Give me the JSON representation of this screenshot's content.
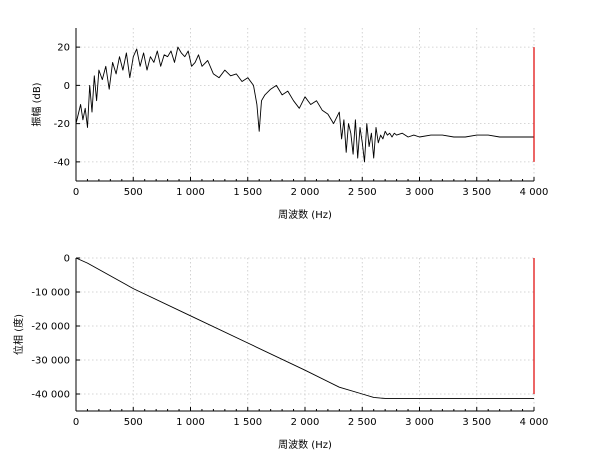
{
  "chart_data": [
    {
      "type": "line",
      "xlabel": "周波数 (Hz)",
      "ylabel": "振幅 (dB)",
      "xlim": [
        0,
        4000
      ],
      "ylim": [
        -50,
        30
      ],
      "xticks": [
        0,
        500,
        1000,
        1500,
        2000,
        2500,
        3000,
        3500,
        4000
      ],
      "xtick_labels": [
        "0",
        "500",
        "1 000",
        "1 500",
        "2 000",
        "2 500",
        "3 000",
        "3 500",
        "4 000"
      ],
      "yticks": [
        20,
        0,
        -20,
        -40
      ],
      "ytick_labels": [
        "20",
        "0",
        "-20",
        "-40"
      ],
      "grid": true,
      "line_color": "#000000",
      "marker_line": {
        "x": 4000,
        "y_from": 20,
        "y_to": -40,
        "color": "#e00000"
      },
      "series": [
        {
          "x": [
            0,
            20,
            40,
            60,
            80,
            100,
            120,
            140,
            160,
            180,
            200,
            230,
            260,
            290,
            320,
            350,
            380,
            410,
            440,
            470,
            500,
            530,
            560,
            590,
            620,
            650,
            680,
            710,
            740,
            770,
            800,
            830,
            860,
            890,
            920,
            950,
            980,
            1010,
            1040,
            1070,
            1100,
            1150,
            1200,
            1250,
            1300,
            1350,
            1400,
            1450,
            1500,
            1550,
            1580,
            1600,
            1620,
            1650,
            1700,
            1750,
            1800,
            1850,
            1900,
            1950,
            2000,
            2050,
            2100,
            2150,
            2200,
            2250,
            2300,
            2320,
            2340,
            2360,
            2380,
            2400,
            2420,
            2440,
            2460,
            2480,
            2500,
            2520,
            2540,
            2560,
            2580,
            2600,
            2620,
            2640,
            2660,
            2680,
            2700,
            2720,
            2740,
            2760,
            2780,
            2800,
            2850,
            2900,
            2950,
            3000,
            3100,
            3200,
            3300,
            3400,
            3500,
            3600,
            3700,
            3800,
            3900,
            4000
          ],
          "y": [
            -20,
            -15,
            -10,
            -18,
            -12,
            -22,
            0,
            -14,
            5,
            -8,
            8,
            3,
            10,
            -2,
            12,
            6,
            15,
            8,
            17,
            4,
            15,
            19,
            10,
            17,
            8,
            15,
            12,
            18,
            10,
            16,
            15,
            18,
            12,
            20,
            17,
            15,
            18,
            10,
            12,
            16,
            10,
            13,
            6,
            4,
            8,
            5,
            6,
            2,
            4,
            0,
            -10,
            -24,
            -8,
            -5,
            -2,
            0,
            -5,
            -3,
            -8,
            -12,
            -6,
            -10,
            -8,
            -13,
            -15,
            -20,
            -14,
            -28,
            -18,
            -35,
            -20,
            -25,
            -36,
            -18,
            -38,
            -22,
            -30,
            -40,
            -20,
            -32,
            -25,
            -38,
            -22,
            -30,
            -26,
            -28,
            -24,
            -26,
            -25,
            -27,
            -25,
            -26,
            -25,
            -27,
            -26,
            -27,
            -26,
            -26,
            -27,
            -27,
            -26,
            -26,
            -27,
            -27,
            -27,
            -27
          ]
        }
      ]
    },
    {
      "type": "line",
      "xlabel": "周波数 (Hz)",
      "ylabel": "位相 (度)",
      "xlim": [
        0,
        4000
      ],
      "ylim": [
        -45000,
        0
      ],
      "xticks": [
        0,
        500,
        1000,
        1500,
        2000,
        2500,
        3000,
        3500,
        4000
      ],
      "xtick_labels": [
        "0",
        "500",
        "1 000",
        "1 500",
        "2 000",
        "2 500",
        "3 000",
        "3 500",
        "4 000"
      ],
      "yticks": [
        0,
        -10000,
        -20000,
        -30000,
        -40000
      ],
      "ytick_labels": [
        "0",
        "-10 000",
        "-20 000",
        "-30 000",
        "-40 000"
      ],
      "grid": true,
      "line_color": "#000000",
      "marker_line": {
        "x": 4000,
        "y_from": 0,
        "y_to": -40000,
        "color": "#e00000"
      },
      "series": [
        {
          "x": [
            0,
            100,
            500,
            1000,
            1500,
            2000,
            2300,
            2500,
            2600,
            2660,
            2700,
            4000
          ],
          "y": [
            0,
            -1500,
            -9000,
            -17000,
            -25000,
            -33000,
            -38000,
            -40000,
            -41000,
            -41200,
            -41300,
            -41300
          ]
        }
      ]
    }
  ]
}
